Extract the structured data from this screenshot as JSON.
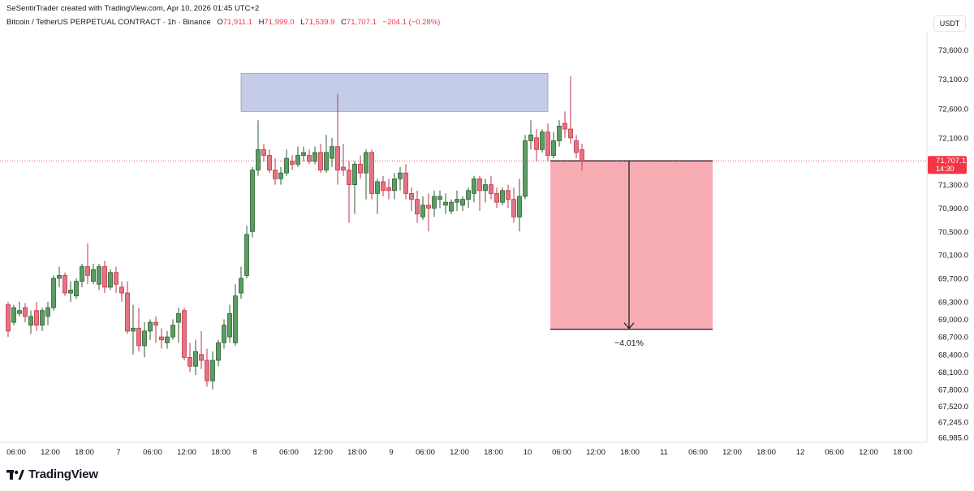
{
  "header": {
    "credit": "SeSentirTrader created with TradingView.com, Apr 10, 2026 01:45 UTC+2",
    "symbol": "Bitcoin / TetherUS PERPETUAL CONTRACT · 1h · Binance",
    "open_label": "O",
    "open_value": "71,911.1",
    "high_label": "H",
    "high_value": "71,999.0",
    "low_label": "L",
    "low_value": "71,539.9",
    "close_label": "C",
    "close_value": "71,707.1",
    "change": "−204.1 (−0.28%)",
    "currency": "USDT"
  },
  "price_tag": {
    "price": "71,707.1",
    "countdown": "14:30"
  },
  "logo": {
    "text": "TradingView"
  },
  "colors": {
    "up": "#4caf50",
    "down": "#f23645",
    "up_body": "#5a9e62",
    "down_body": "#e57382",
    "zone": "#c5cce8",
    "target": "#f8adb4"
  },
  "chart_data": {
    "type": "candlestick",
    "ylim": [
      66900,
      73900
    ],
    "y_ticks": [
      {
        "label": "73,600.0",
        "value": 73600
      },
      {
        "label": "73,100.0",
        "value": 73100
      },
      {
        "label": "72,600.0",
        "value": 72600
      },
      {
        "label": "72,100.0",
        "value": 72100
      },
      {
        "label": "71,300.0",
        "value": 71300
      },
      {
        "label": "70,900.0",
        "value": 70900
      },
      {
        "label": "70,500.0",
        "value": 70500
      },
      {
        "label": "70,100.0",
        "value": 70100
      },
      {
        "label": "69,700.0",
        "value": 69700
      },
      {
        "label": "69,300.0",
        "value": 69300
      },
      {
        "label": "69,000.0",
        "value": 69000
      },
      {
        "label": "68,700.0",
        "value": 68700
      },
      {
        "label": "68,400.0",
        "value": 68400
      },
      {
        "label": "68,100.0",
        "value": 68100
      },
      {
        "label": "67,800.0",
        "value": 67800
      },
      {
        "label": "67,520.0",
        "value": 67520
      },
      {
        "label": "67,245.0",
        "value": 67245
      },
      {
        "label": "66,985.0",
        "value": 66985
      }
    ],
    "x_ticks": [
      {
        "label": "06:00",
        "bar": 0
      },
      {
        "label": "12:00",
        "bar": 6
      },
      {
        "label": "18:00",
        "bar": 12
      },
      {
        "label": "7",
        "bar": 18
      },
      {
        "label": "06:00",
        "bar": 24
      },
      {
        "label": "12:00",
        "bar": 30
      },
      {
        "label": "18:00",
        "bar": 36
      },
      {
        "label": "8",
        "bar": 42
      },
      {
        "label": "06:00",
        "bar": 48
      },
      {
        "label": "12:00",
        "bar": 54
      },
      {
        "label": "18:00",
        "bar": 60
      },
      {
        "label": "9",
        "bar": 66
      },
      {
        "label": "06:00",
        "bar": 72
      },
      {
        "label": "12:00",
        "bar": 78
      },
      {
        "label": "18:00",
        "bar": 84
      },
      {
        "label": "10",
        "bar": 90
      },
      {
        "label": "06:00",
        "bar": 96
      },
      {
        "label": "12:00",
        "bar": 102
      },
      {
        "label": "18:00",
        "bar": 108
      },
      {
        "label": "11",
        "bar": 114
      },
      {
        "label": "06:00",
        "bar": 120
      },
      {
        "label": "12:00",
        "bar": 126
      },
      {
        "label": "18:00",
        "bar": 132
      },
      {
        "label": "12",
        "bar": 138
      },
      {
        "label": "06:00",
        "bar": 144
      },
      {
        "label": "12:00",
        "bar": 150
      },
      {
        "label": "18:00",
        "bar": 156
      }
    ],
    "candles": [
      [
        69250,
        69300,
        68700,
        68800
      ],
      [
        68950,
        69250,
        68900,
        69200
      ],
      [
        69100,
        69300,
        69050,
        69150
      ],
      [
        69200,
        69280,
        68950,
        69050
      ],
      [
        68900,
        69150,
        68750,
        69050
      ],
      [
        69150,
        69300,
        68800,
        68900
      ],
      [
        68900,
        69200,
        68800,
        69150
      ],
      [
        69050,
        69300,
        68900,
        69200
      ],
      [
        69200,
        69750,
        69150,
        69700
      ],
      [
        69700,
        69900,
        69550,
        69750
      ],
      [
        69750,
        69800,
        69400,
        69450
      ],
      [
        69450,
        69650,
        69300,
        69500
      ],
      [
        69400,
        69700,
        69350,
        69650
      ],
      [
        69650,
        69950,
        69550,
        69900
      ],
      [
        69900,
        70300,
        69600,
        69750
      ],
      [
        69650,
        69950,
        69600,
        69850
      ],
      [
        69600,
        69950,
        69500,
        69900
      ],
      [
        69900,
        70000,
        69450,
        69550
      ],
      [
        69550,
        69850,
        69500,
        69800
      ],
      [
        69800,
        69900,
        69450,
        69600
      ],
      [
        69550,
        69650,
        69300,
        69450
      ],
      [
        69450,
        69650,
        68750,
        68800
      ],
      [
        68800,
        69250,
        68400,
        68850
      ],
      [
        68850,
        69200,
        68450,
        68550
      ],
      [
        68550,
        68950,
        68350,
        68800
      ],
      [
        68800,
        69000,
        68650,
        68950
      ],
      [
        68950,
        69050,
        68600,
        68900
      ],
      [
        68700,
        68850,
        68500,
        68650
      ],
      [
        68600,
        68800,
        68500,
        68700
      ],
      [
        68700,
        69000,
        68650,
        68900
      ],
      [
        68950,
        69200,
        68600,
        69100
      ],
      [
        69150,
        69200,
        68300,
        68350
      ],
      [
        68350,
        68600,
        68100,
        68200
      ],
      [
        68200,
        68650,
        68050,
        68450
      ],
      [
        68400,
        68800,
        68150,
        68300
      ],
      [
        68300,
        68500,
        67850,
        67950
      ],
      [
        67950,
        68450,
        67800,
        68300
      ],
      [
        68300,
        68650,
        68200,
        68600
      ],
      [
        68600,
        69000,
        68500,
        68900
      ],
      [
        68700,
        69250,
        68600,
        69100
      ],
      [
        68600,
        69600,
        68550,
        69400
      ],
      [
        69450,
        69900,
        69350,
        69700
      ],
      [
        69750,
        70600,
        69700,
        70450
      ],
      [
        70500,
        71600,
        70400,
        71550
      ],
      [
        71550,
        72400,
        71450,
        71900
      ],
      [
        71900,
        72000,
        71700,
        71800
      ],
      [
        71800,
        71900,
        71500,
        71550
      ],
      [
        71550,
        71750,
        71300,
        71400
      ],
      [
        71400,
        71600,
        71300,
        71500
      ],
      [
        71500,
        71900,
        71450,
        71750
      ],
      [
        71700,
        71800,
        71550,
        71650
      ],
      [
        71650,
        71950,
        71600,
        71800
      ],
      [
        71800,
        71950,
        71700,
        71850
      ],
      [
        71800,
        71900,
        71650,
        71700
      ],
      [
        71700,
        71950,
        71650,
        71850
      ],
      [
        71850,
        72000,
        71500,
        71550
      ],
      [
        71550,
        72150,
        71500,
        71850
      ],
      [
        71750,
        72100,
        71600,
        71950
      ],
      [
        71950,
        72850,
        71300,
        71550
      ],
      [
        71600,
        72000,
        71450,
        71550
      ],
      [
        71550,
        71700,
        70650,
        71300
      ],
      [
        71300,
        71700,
        70800,
        71650
      ],
      [
        71650,
        71800,
        71400,
        71500
      ],
      [
        71500,
        71900,
        71050,
        71850
      ],
      [
        71850,
        71900,
        71050,
        71150
      ],
      [
        71150,
        71400,
        70800,
        71350
      ],
      [
        71350,
        71450,
        71100,
        71200
      ],
      [
        71250,
        71400,
        71050,
        71200
      ],
      [
        71200,
        71500,
        71050,
        71400
      ],
      [
        71400,
        71600,
        71200,
        71500
      ],
      [
        71500,
        71650,
        71050,
        71150
      ],
      [
        71150,
        71250,
        70850,
        71050
      ],
      [
        71050,
        71200,
        70650,
        70800
      ],
      [
        70750,
        71100,
        70700,
        70950
      ],
      [
        70950,
        71150,
        70500,
        70900
      ],
      [
        70900,
        71200,
        70750,
        71100
      ],
      [
        71050,
        71200,
        70900,
        71100
      ],
      [
        70950,
        71150,
        70800,
        71000
      ],
      [
        70850,
        71050,
        70800,
        71000
      ],
      [
        71000,
        71200,
        70850,
        71050
      ],
      [
        70950,
        71100,
        70850,
        71050
      ],
      [
        71050,
        71250,
        70900,
        71200
      ],
      [
        71150,
        71450,
        71000,
        71400
      ],
      [
        71400,
        71450,
        70850,
        71200
      ],
      [
        71200,
        71400,
        71000,
        71300
      ],
      [
        71300,
        71450,
        71050,
        71150
      ],
      [
        71150,
        71250,
        70900,
        71000
      ],
      [
        71000,
        71250,
        70950,
        71200
      ],
      [
        71200,
        71300,
        70900,
        71050
      ],
      [
        71050,
        71250,
        70650,
        70750
      ],
      [
        70750,
        71400,
        70500,
        71100
      ],
      [
        71100,
        72150,
        71050,
        72050
      ],
      [
        72050,
        72400,
        71900,
        72150
      ],
      [
        72100,
        72250,
        71700,
        71900
      ],
      [
        71900,
        72250,
        71850,
        72200
      ],
      [
        72200,
        72350,
        71700,
        71800
      ],
      [
        71800,
        72200,
        71750,
        72050
      ],
      [
        72050,
        72400,
        71950,
        72300
      ],
      [
        72350,
        72550,
        72100,
        72250
      ],
      [
        72250,
        73150,
        72000,
        72100
      ],
      [
        72050,
        72150,
        71750,
        71850
      ],
      [
        71900,
        72000,
        71540,
        71707
      ]
    ],
    "zone": {
      "x_start_bar": 42,
      "x_end_bar": 95,
      "y_low": 72550,
      "y_high": 73200
    },
    "projection": {
      "x_start_bar": 95,
      "x_end_bar": 120,
      "from": 71707.1,
      "to": 68830,
      "label": "−4.01%"
    },
    "last_price": 71707.1
  }
}
